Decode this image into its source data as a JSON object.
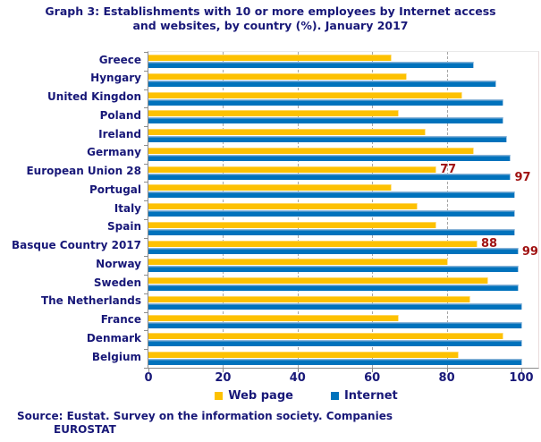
{
  "title": {
    "full": "Graph 3: Establishments with 10 or more employees by Internet access and websites, by country (%). January 2017",
    "line1": "Graph 3: Establishments with 10 or more employees by Internet access",
    "line2": "and websites, by country (%). January 2017"
  },
  "chart_data": {
    "type": "bar",
    "orientation": "horizontal",
    "title": "Graph 3: Establishments with 10 or more employees by Internet access and websites, by country (%). January 2017",
    "categories": [
      "Greece",
      "Hyngary",
      "United Kingdon",
      "Poland",
      "Ireland",
      "Germany",
      "European Union 28",
      "Portugal",
      "Italy",
      "Spain",
      "Basque Country 2017",
      "Norway",
      "Sweden",
      "The Netherlands",
      "France",
      "Denmark",
      "Belgium"
    ],
    "series": [
      {
        "name": "Web page",
        "color": "#FDC101",
        "values": [
          65,
          69,
          84,
          67,
          74,
          87,
          77,
          65,
          72,
          77,
          88,
          80,
          91,
          86,
          67,
          95,
          83
        ]
      },
      {
        "name": "Internet",
        "color": "#0072BC",
        "values": [
          87,
          93,
          95,
          95,
          96,
          97,
          97,
          98,
          98,
          98,
          99,
          99,
          99,
          100,
          100,
          100,
          100
        ]
      }
    ],
    "xlim": [
      0,
      100
    ],
    "xticks": [
      0,
      20,
      40,
      60,
      80,
      100
    ],
    "gridlines_x": [
      20,
      40,
      60,
      80
    ],
    "grid_style": "vertical-dashed",
    "legend_position": "bottom",
    "value_labels": [
      {
        "category": "European Union 28",
        "series": "Web page",
        "text": "77"
      },
      {
        "category": "European Union 28",
        "series": "Internet",
        "text": "97"
      },
      {
        "category": "Basque Country 2017",
        "series": "Web page",
        "text": "88"
      },
      {
        "category": "Basque Country 2017",
        "series": "Internet",
        "text": "99"
      }
    ]
  },
  "legend": {
    "items": [
      {
        "label": "Web page",
        "color": "#FDC101"
      },
      {
        "label": "Internet",
        "color": "#0072BC"
      }
    ]
  },
  "source": {
    "line1": "Source: Eustat. Survey on the information society. Companies",
    "line2": "EUROSTAT"
  },
  "colors": {
    "text_navy": "#181878",
    "value_label_red": "#A01212",
    "grid_gray": "#A6A6A6",
    "axis_gray": "#8C8C8C",
    "web_page_yellow": "#FDC101",
    "internet_blue": "#0072BC"
  }
}
